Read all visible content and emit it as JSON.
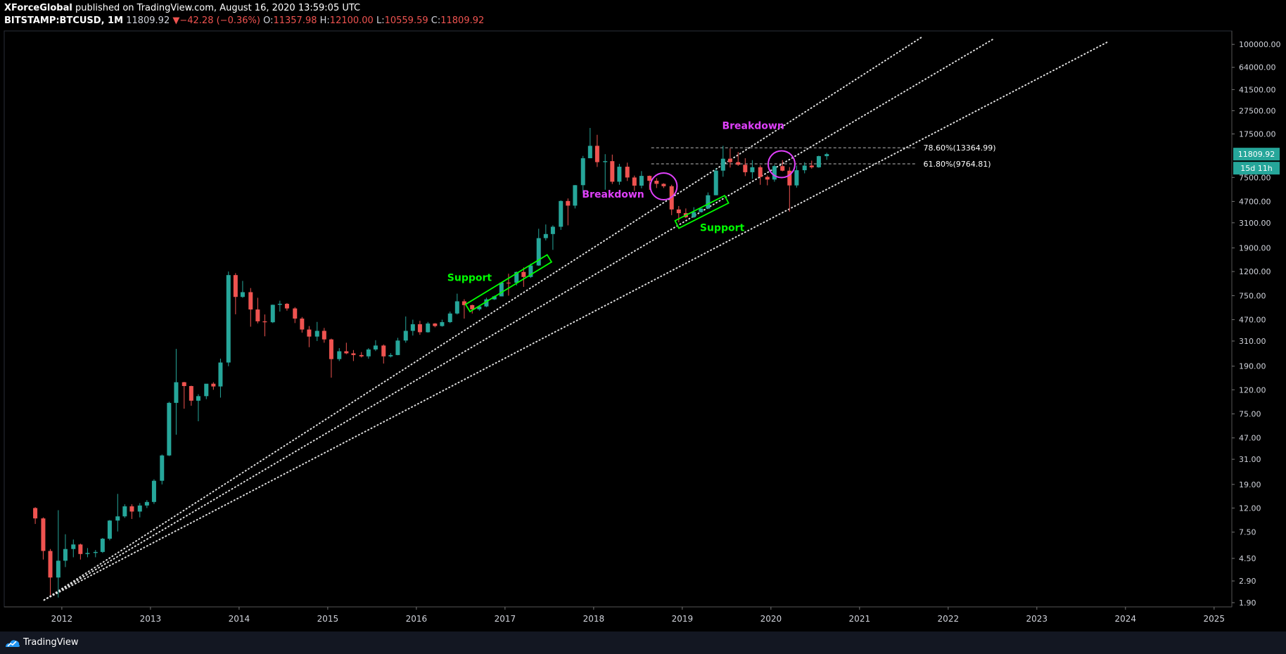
{
  "header": {
    "author": "XForceGlobal",
    "published_text": "published on TradingView.com, August 16, 2020 13:59:05 UTC",
    "symbol": "BITSTAMP:BTCUSD, 1M",
    "last": "11809.92",
    "change": "−42.28 (−0.36%)",
    "o_label": "O:",
    "o_value": "11357.98",
    "h_label": "H:",
    "h_value": "12100.00",
    "l_label": "L:",
    "l_value": "10559.59",
    "c_label": "C:",
    "c_value": "11809.92"
  },
  "footer": {
    "brand": "TradingView"
  },
  "colors": {
    "up": "#26a69a",
    "down": "#ef5350",
    "support": "#00ff00",
    "breakdown": "#e040fb",
    "badge": "#26a69a"
  },
  "chart_data": {
    "type": "candlestick",
    "y_scale": "log",
    "ylim": [
      1.75,
      130000
    ],
    "y_ticks": [
      1.9,
      2.9,
      4.5,
      7.5,
      12,
      19,
      31,
      47,
      75,
      120,
      190,
      310,
      470,
      750,
      1200,
      1900,
      3100,
      4700,
      7500,
      17500,
      27500,
      41500,
      64000,
      100000
    ],
    "y_tick_labels": [
      "1.90",
      "2.90",
      "4.50",
      "7.50",
      "12.00",
      "19.00",
      "31.00",
      "47.00",
      "75.00",
      "120.00",
      "190.00",
      "310.00",
      "470.00",
      "750.00",
      "1200.00",
      "1900.00",
      "3100.00",
      "4700.00",
      "7500.00",
      "17500.00",
      "27500.00",
      "41500.00",
      "64000.00",
      "100000.00"
    ],
    "xlim": [
      2011.35,
      2025.2
    ],
    "x_ticks": [
      2012,
      2013,
      2014,
      2015,
      2016,
      2017,
      2018,
      2019,
      2020,
      2021,
      2022,
      2023,
      2024,
      2025
    ],
    "x_tick_labels": [
      "2012",
      "2013",
      "2014",
      "2015",
      "2016",
      "2017",
      "2018",
      "2019",
      "2020",
      "2021",
      "2022",
      "2023",
      "2024",
      "2025"
    ],
    "price_badge": {
      "label": "11809.92",
      "value": 11809.92
    },
    "countdown_badge": {
      "label": "15d 11h"
    },
    "fib_levels": [
      {
        "label": "78.60%(13364.99)",
        "value": 13364.99
      },
      {
        "label": "61.80%(9764.81)",
        "value": 9764.81
      }
    ],
    "annotations": [
      {
        "type": "text",
        "text": "Support",
        "color": "support",
        "x": 2016.6,
        "y": 1000
      },
      {
        "type": "text",
        "text": "Support",
        "color": "support",
        "x": 2019.45,
        "y": 2650
      },
      {
        "type": "text",
        "text": "Breakdown",
        "color": "breakdown",
        "x": 2018.22,
        "y": 5050
      },
      {
        "type": "text",
        "text": "Breakdown",
        "color": "breakdown",
        "x": 2019.8,
        "y": 19200
      },
      {
        "type": "circle",
        "color": "breakdown",
        "x": 2018.79,
        "y": 6300
      },
      {
        "type": "circle",
        "color": "breakdown",
        "x": 2020.12,
        "y": 9700
      },
      {
        "type": "box",
        "color": "support",
        "from": [
          2016.58,
          590
        ],
        "to": [
          2017.5,
          1550
        ]
      },
      {
        "type": "box",
        "color": "support",
        "from": [
          2018.94,
          3000
        ],
        "to": [
          2019.5,
          4900
        ]
      }
    ],
    "trendlines": [
      {
        "from": [
          2011.8,
          2.0
        ],
        "to": [
          2021.7,
          115000
        ]
      },
      {
        "from": [
          2011.8,
          2.0
        ],
        "to": [
          2022.5,
          110000
        ]
      },
      {
        "from": [
          2011.8,
          2.0
        ],
        "to": [
          2023.8,
          105000
        ]
      }
    ],
    "candles": [
      [
        2011.7,
        12.0,
        12.2,
        8.8,
        9.8
      ],
      [
        2011.79,
        9.8,
        10.0,
        4.4,
        5.2
      ],
      [
        2011.87,
        5.2,
        5.4,
        2.2,
        3.1
      ],
      [
        2011.96,
        3.1,
        11.5,
        2.1,
        4.3
      ],
      [
        2012.04,
        4.3,
        7.2,
        3.8,
        5.4
      ],
      [
        2012.13,
        5.4,
        6.5,
        4.6,
        5.9
      ],
      [
        2012.21,
        5.9,
        6.0,
        4.4,
        4.9
      ],
      [
        2012.29,
        4.9,
        5.5,
        4.6,
        5.0
      ],
      [
        2012.38,
        5.0,
        5.3,
        4.6,
        5.1
      ],
      [
        2012.46,
        5.1,
        6.7,
        5.0,
        6.6
      ],
      [
        2012.54,
        6.6,
        9.5,
        6.4,
        9.4
      ],
      [
        2012.63,
        9.4,
        15.8,
        7.6,
        10.2
      ],
      [
        2012.71,
        10.2,
        12.9,
        9.9,
        12.4
      ],
      [
        2012.79,
        12.4,
        12.9,
        9.7,
        11.2
      ],
      [
        2012.88,
        11.2,
        13.2,
        10.0,
        12.6
      ],
      [
        2012.96,
        12.6,
        14.0,
        12.0,
        13.5
      ],
      [
        2013.04,
        13.5,
        21.0,
        13.0,
        20.4
      ],
      [
        2013.13,
        20.4,
        34.0,
        19.0,
        33.4
      ],
      [
        2013.21,
        33.4,
        95.0,
        33.0,
        93.0
      ],
      [
        2013.29,
        93.0,
        266.0,
        50.0,
        139.0
      ],
      [
        2013.38,
        139.0,
        140.0,
        83.0,
        129.0
      ],
      [
        2013.46,
        129.0,
        130.0,
        88.0,
        97.0
      ],
      [
        2013.54,
        97.0,
        110.0,
        65.0,
        106.0
      ],
      [
        2013.63,
        106.0,
        126.0,
        100.0,
        135.0
      ],
      [
        2013.71,
        135.0,
        139.0,
        120.0,
        128.0
      ],
      [
        2013.79,
        128.0,
        220.0,
        103.0,
        204.0
      ],
      [
        2013.88,
        204.0,
        1200.0,
        190.0,
        1120.0
      ],
      [
        2013.96,
        1120.0,
        1163.0,
        522.0,
        732.0
      ],
      [
        2014.04,
        732.0,
        1000.0,
        720.0,
        803.0
      ],
      [
        2014.13,
        803.0,
        870.0,
        410.0,
        573.0
      ],
      [
        2014.21,
        573.0,
        720.0,
        437.0,
        455.0
      ],
      [
        2014.29,
        455.0,
        520.0,
        340.0,
        447.0
      ],
      [
        2014.38,
        447.0,
        630.0,
        440.0,
        628.0
      ],
      [
        2014.46,
        628.0,
        680.0,
        550.0,
        640.0
      ],
      [
        2014.54,
        640.0,
        650.0,
        560.0,
        585.0
      ],
      [
        2014.63,
        585.0,
        600.0,
        440.0,
        480.0
      ],
      [
        2014.71,
        480.0,
        495.0,
        365.0,
        388.0
      ],
      [
        2014.79,
        388.0,
        415.0,
        275.0,
        338.0
      ],
      [
        2014.88,
        338.0,
        450.0,
        310.0,
        378.0
      ],
      [
        2014.96,
        378.0,
        400.0,
        300.0,
        320.0
      ],
      [
        2015.04,
        320.0,
        325.0,
        152.0,
        218.0
      ],
      [
        2015.13,
        218.0,
        270.0,
        210.0,
        254.0
      ],
      [
        2015.21,
        254.0,
        300.0,
        240.0,
        244.0
      ],
      [
        2015.29,
        244.0,
        260.0,
        210.0,
        236.0
      ],
      [
        2015.38,
        236.0,
        250.0,
        225.0,
        230.0
      ],
      [
        2015.46,
        230.0,
        270.0,
        220.0,
        263.0
      ],
      [
        2015.54,
        263.0,
        315.0,
        255.0,
        284.0
      ],
      [
        2015.63,
        284.0,
        290.0,
        200.0,
        230.0
      ],
      [
        2015.71,
        230.0,
        245.0,
        225.0,
        236.0
      ],
      [
        2015.79,
        236.0,
        330.0,
        235.0,
        313.0
      ],
      [
        2015.88,
        313.0,
        500.0,
        300.0,
        378.0
      ],
      [
        2015.96,
        378.0,
        470.0,
        345.0,
        430.0
      ],
      [
        2016.04,
        430.0,
        460.0,
        350.0,
        368.0
      ],
      [
        2016.13,
        368.0,
        450.0,
        365.0,
        436.0
      ],
      [
        2016.21,
        436.0,
        440.0,
        405.0,
        415.0
      ],
      [
        2016.29,
        415.0,
        470.0,
        410.0,
        448.0
      ],
      [
        2016.38,
        448.0,
        550.0,
        440.0,
        530.0
      ],
      [
        2016.46,
        530.0,
        780.0,
        520.0,
        672.0
      ],
      [
        2016.54,
        672.0,
        700.0,
        480.0,
        624.0
      ],
      [
        2016.63,
        624.0,
        630.0,
        530.0,
        575.0
      ],
      [
        2016.71,
        575.0,
        620.0,
        560.0,
        608.0
      ],
      [
        2016.79,
        608.0,
        720.0,
        600.0,
        698.0
      ],
      [
        2016.88,
        698.0,
        750.0,
        690.0,
        740.0
      ],
      [
        2016.96,
        740.0,
        975.0,
        740.0,
        966.0
      ],
      [
        2017.04,
        966.0,
        1150.0,
        750.0,
        965.0
      ],
      [
        2017.13,
        965.0,
        1200.0,
        915.0,
        1190.0
      ],
      [
        2017.21,
        1190.0,
        1300.0,
        890.0,
        1080.0
      ],
      [
        2017.29,
        1080.0,
        1400.0,
        1060.0,
        1350.0
      ],
      [
        2017.38,
        1350.0,
        2760.0,
        1340.0,
        2300.0
      ],
      [
        2017.46,
        2300.0,
        3000.0,
        2200.0,
        2490.0
      ],
      [
        2017.54,
        2490.0,
        2950.0,
        1830.0,
        2870.0
      ],
      [
        2017.63,
        2870.0,
        4800.0,
        2700.0,
        4740.0
      ],
      [
        2017.71,
        4740.0,
        4980.0,
        2950.0,
        4330.0
      ],
      [
        2017.79,
        4330.0,
        6470.0,
        4100.0,
        6450.0
      ],
      [
        2017.88,
        6450.0,
        11400.0,
        5500.0,
        10900.0
      ],
      [
        2017.96,
        10900.0,
        19660.0,
        10900.0,
        13880.0
      ],
      [
        2018.04,
        13880.0,
        17200.0,
        9200.0,
        10100.0
      ],
      [
        2018.13,
        10100.0,
        11800.0,
        5900.0,
        10300.0
      ],
      [
        2018.21,
        10300.0,
        11700.0,
        6600.0,
        6900.0
      ],
      [
        2018.29,
        6900.0,
        9780.0,
        6500.0,
        9240.0
      ],
      [
        2018.38,
        9240.0,
        10000.0,
        7000.0,
        7490.0
      ],
      [
        2018.46,
        7490.0,
        7770.0,
        5770.0,
        6390.0
      ],
      [
        2018.54,
        6390.0,
        8480.0,
        6070.0,
        7730.0
      ],
      [
        2018.63,
        7730.0,
        7780.0,
        5880.0,
        7030.0
      ],
      [
        2018.71,
        7030.0,
        7400.0,
        6100.0,
        6620.0
      ],
      [
        2018.79,
        6620.0,
        6700.0,
        6100.0,
        6320.0
      ],
      [
        2018.88,
        6320.0,
        6500.0,
        3600.0,
        4020.0
      ],
      [
        2018.96,
        4020.0,
        4300.0,
        3130.0,
        3740.0
      ],
      [
        2019.04,
        3740.0,
        4100.0,
        3400.0,
        3460.0
      ],
      [
        2019.13,
        3460.0,
        4200.0,
        3400.0,
        3820.0
      ],
      [
        2019.21,
        3820.0,
        4100.0,
        3800.0,
        4090.0
      ],
      [
        2019.29,
        4090.0,
        5600.0,
        4050.0,
        5300.0
      ],
      [
        2019.38,
        5300.0,
        9000.0,
        5300.0,
        8560.0
      ],
      [
        2019.46,
        8560.0,
        13880.0,
        7600.0,
        10800.0
      ],
      [
        2019.54,
        10800.0,
        13200.0,
        9100.0,
        10100.0
      ],
      [
        2019.63,
        10100.0,
        12300.0,
        9400.0,
        9600.0
      ],
      [
        2019.71,
        9600.0,
        10900.0,
        7700.0,
        8300.0
      ],
      [
        2019.79,
        8300.0,
        10500.0,
        7300.0,
        9150.0
      ],
      [
        2019.88,
        9150.0,
        9500.0,
        6500.0,
        7570.0
      ],
      [
        2019.96,
        7570.0,
        7800.0,
        6430.0,
        7200.0
      ],
      [
        2020.04,
        7200.0,
        9600.0,
        6900.0,
        9350.0
      ],
      [
        2020.13,
        9350.0,
        10500.0,
        8450.0,
        8550.0
      ],
      [
        2020.21,
        8550.0,
        9180.0,
        3850.0,
        6420.0
      ],
      [
        2020.29,
        6420.0,
        9460.0,
        6150.0,
        8630.0
      ],
      [
        2020.38,
        8630.0,
        10080.0,
        8120.0,
        9450.0
      ],
      [
        2020.46,
        9450.0,
        10400.0,
        8900.0,
        9140.0
      ],
      [
        2020.54,
        9140.0,
        11460.0,
        9050.0,
        11350.0
      ],
      [
        2020.63,
        11350.0,
        12100.0,
        10560.0,
        11810.0
      ]
    ]
  }
}
